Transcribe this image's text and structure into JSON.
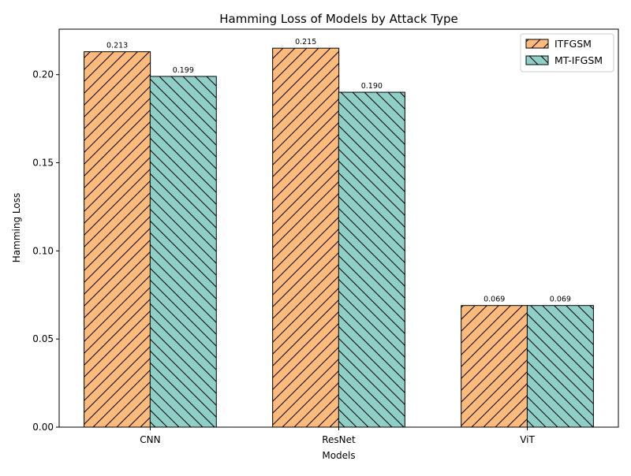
{
  "chart_data": {
    "type": "bar",
    "title": "Hamming Loss of Models by Attack Type",
    "xlabel": "Models",
    "ylabel": "Hamming Loss",
    "categories": [
      "CNN",
      "ResNet",
      "ViT"
    ],
    "series": [
      {
        "name": "ITFGSM",
        "values": [
          0.213,
          0.215,
          0.069
        ],
        "labels": [
          "0.213",
          "0.215",
          "0.069"
        ],
        "color": "#fdbb7b",
        "hatch": "forward-diagonal"
      },
      {
        "name": "MT-IFGSM",
        "values": [
          0.199,
          0.19,
          0.069
        ],
        "labels": [
          "0.199",
          "0.190",
          "0.069"
        ],
        "color": "#8ecfc8",
        "hatch": "back-diagonal"
      }
    ],
    "ylim": [
      0,
      0.2258
    ],
    "yticks": [
      "0.00",
      "0.05",
      "0.10",
      "0.15",
      "0.20"
    ],
    "grid": false,
    "legend": "top-right",
    "edge_color": "#000000"
  }
}
